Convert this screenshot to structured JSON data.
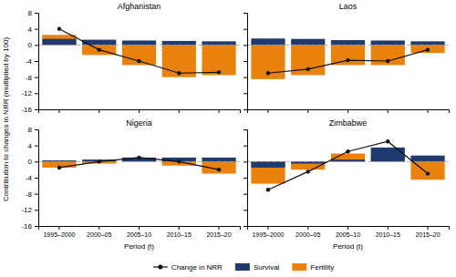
{
  "chart_data": [
    {
      "type": "bar",
      "title": "Afghanistan",
      "categories": [
        "1995–2000",
        "2000–05",
        "2005–10",
        "2010–15",
        "2015–20"
      ],
      "series": [
        {
          "name": "Change in NRR",
          "type": "line",
          "color": "#111111",
          "marker": "circle",
          "values": [
            4.0,
            -1.2,
            -4.0,
            -7.0,
            -6.8
          ]
        },
        {
          "name": "Survival",
          "type": "bar",
          "color": "#1e3a6e",
          "values": [
            1.5,
            1.3,
            1.1,
            1.0,
            0.9
          ]
        },
        {
          "name": "Fertility",
          "type": "bar",
          "color": "#e8820c",
          "values": [
            2.5,
            -2.5,
            -5.0,
            -8.0,
            -7.5
          ]
        }
      ],
      "y_label": "Contribution to changes in NRR (multiplied by 100)",
      "ylim": [
        -16,
        8
      ],
      "yticks": [
        -16,
        -12,
        -8,
        -4,
        0,
        4,
        8
      ],
      "tick_labels": "y",
      "legend": "bottom"
    },
    {
      "type": "bar",
      "title": "Laos",
      "categories": [
        "1995–2000",
        "2000–05",
        "2005–10",
        "2010–15",
        "2015–20"
      ],
      "series": [
        {
          "name": "Change in NRR",
          "type": "line",
          "color": "#111111",
          "marker": "circle",
          "values": [
            -7.0,
            -6.0,
            -3.8,
            -4.0,
            -1.2
          ]
        },
        {
          "name": "Survival",
          "type": "bar",
          "color": "#1e3a6e",
          "values": [
            1.6,
            1.5,
            1.2,
            1.1,
            0.9
          ]
        },
        {
          "name": "Fertility",
          "type": "bar",
          "color": "#e8820c",
          "values": [
            -8.5,
            -7.5,
            -5.0,
            -5.0,
            -2.0
          ]
        }
      ],
      "ylim": [
        -16,
        8
      ],
      "yticks": [
        -16,
        -12,
        -8,
        -4,
        0,
        4,
        8
      ],
      "tick_labels": false
    },
    {
      "type": "bar",
      "title": "Nigeria",
      "categories": [
        "1995–2000",
        "2000–05",
        "2005–10",
        "2010–15",
        "2015–20"
      ],
      "series": [
        {
          "name": "Change in NRR",
          "type": "line",
          "color": "#111111",
          "marker": "circle",
          "values": [
            -1.5,
            0.0,
            1.0,
            0.0,
            -2.0
          ]
        },
        {
          "name": "Survival",
          "type": "bar",
          "color": "#1e3a6e",
          "values": [
            0.3,
            0.5,
            1.0,
            1.0,
            1.0
          ]
        },
        {
          "name": "Fertility",
          "type": "bar",
          "color": "#e8820c",
          "values": [
            -1.5,
            -0.5,
            0.0,
            -1.0,
            -3.0
          ]
        }
      ],
      "x_label": "Period (t)",
      "ylim": [
        -16,
        8
      ],
      "yticks": [
        -16,
        -12,
        -8,
        -4,
        0,
        4,
        8
      ]
    },
    {
      "type": "bar",
      "title": "Zimbabwe",
      "categories": [
        "1995–2000",
        "2000–05",
        "2005–10",
        "2010–15",
        "2015–20"
      ],
      "series": [
        {
          "name": "Change in NRR",
          "type": "line",
          "color": "#111111",
          "marker": "circle",
          "values": [
            -7.0,
            -2.5,
            2.5,
            5.0,
            -3.0
          ]
        },
        {
          "name": "Survival",
          "type": "bar",
          "color": "#1e3a6e",
          "values": [
            -1.5,
            -0.5,
            0.5,
            3.5,
            1.5
          ]
        },
        {
          "name": "Fertility",
          "type": "bar",
          "color": "#e8820c",
          "values": [
            -5.5,
            -2.0,
            2.0,
            1.5,
            -4.5
          ]
        }
      ],
      "x_label": "Period (t)",
      "ylim": [
        -16,
        8
      ],
      "yticks": [
        -16,
        -12,
        -8,
        -4,
        0,
        4,
        8
      ],
      "tick_labels": "x"
    }
  ]
}
